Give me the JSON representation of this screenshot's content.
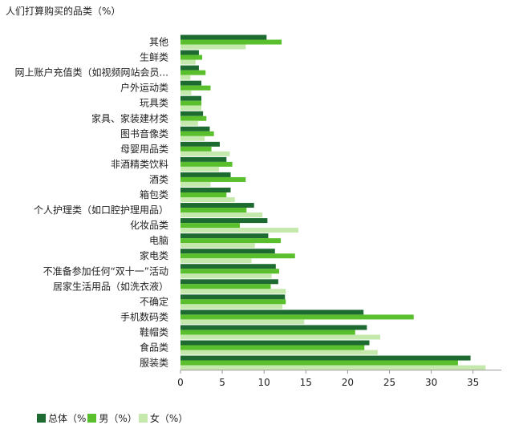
{
  "chart_data": {
    "type": "bar",
    "orientation": "horizontal",
    "title": "人们打算购买的品类（%）",
    "categories": [
      "其他",
      "生鲜类",
      "网上账户充值类（如视频网站会员...",
      "户外运动类",
      "玩具类",
      "家具、家装建材类",
      "图书音像类",
      "母婴用品类",
      "非酒精类饮料",
      "酒类",
      "箱包类",
      "个人护理类（如口腔护理用品）",
      "化妆品类",
      "电脑",
      "家电类",
      "不准备参加任何“双十一”活动",
      "居家生活用品（如洗衣液）",
      "不确定",
      "手机数码类",
      "鞋帽类",
      "食品类",
      "服装类"
    ],
    "series": [
      {
        "name": "总体（%",
        "color": "#1e6b31",
        "values": [
          10.3,
          2.2,
          2.2,
          2.5,
          2.5,
          2.7,
          3.5,
          4.7,
          5.5,
          6.0,
          6.0,
          8.8,
          10.4,
          10.5,
          11.3,
          11.4,
          11.7,
          12.5,
          21.9,
          22.3,
          22.6,
          34.7
        ]
      },
      {
        "name": "男（%）",
        "color": "#5abf2c",
        "values": [
          12.1,
          2.6,
          3.0,
          3.6,
          2.5,
          3.1,
          4.0,
          3.7,
          6.2,
          7.8,
          5.5,
          7.9,
          7.1,
          12.0,
          13.7,
          11.8,
          10.8,
          12.6,
          27.9,
          20.9,
          22.0,
          33.2
        ]
      },
      {
        "name": "女（%）",
        "color": "#c5e8ad",
        "values": [
          7.8,
          1.8,
          1.2,
          1.3,
          2.5,
          2.1,
          2.9,
          5.9,
          4.6,
          3.6,
          6.5,
          9.8,
          14.1,
          8.9,
          8.5,
          10.9,
          12.6,
          12.2,
          14.8,
          23.9,
          23.6,
          36.5
        ]
      }
    ],
    "xticks": [
      "0",
      "5",
      "10",
      "15",
      "20",
      "25",
      "30",
      "35"
    ],
    "xlim": [
      0,
      38.5
    ],
    "xlabel": "",
    "ylabel": "",
    "grid": false,
    "legend_position": "bottom-left"
  }
}
